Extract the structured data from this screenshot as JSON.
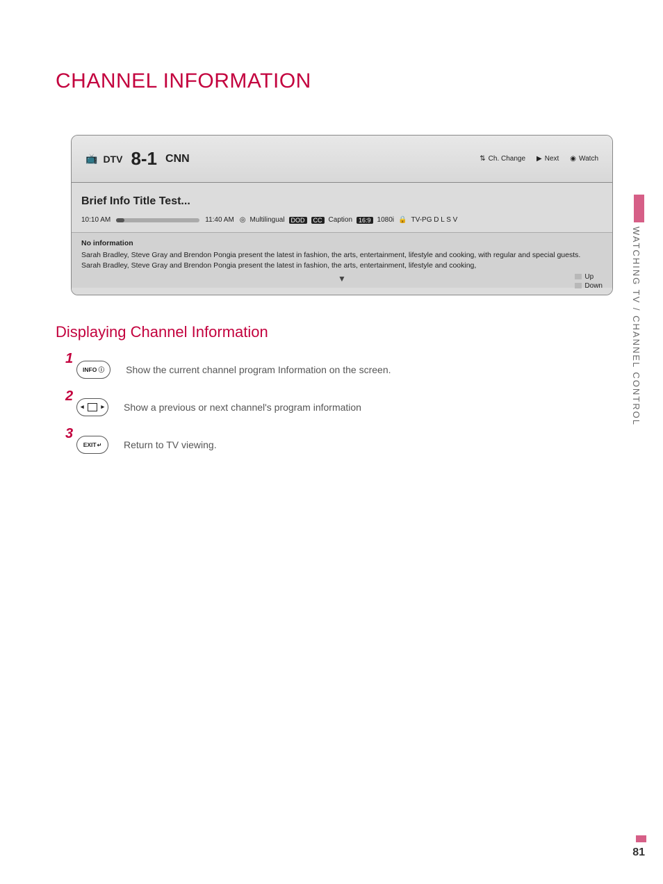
{
  "title": "CHANNEL INFORMATION",
  "side_label": "WATCHING TV / CHANNEL CONTROL",
  "page_number": "81",
  "panel": {
    "dtv_label": "DTV",
    "channel_number": "8-1",
    "channel_name": "CNN",
    "hr_change": "Ch. Change",
    "hr_next": "Next",
    "hr_watch": "Watch",
    "brief_title": "Brief Info Title Test...",
    "time_start": "10:10 AM",
    "time_end": "11:40 AM",
    "multilingual": "Multilingual",
    "dolby": "DOD",
    "cc": "CC",
    "caption": "Caption",
    "aspect": "16:9",
    "res": "1080i",
    "rating": "TV-PG D L S V",
    "noinfo": "No information",
    "desc1": "Sarah Bradley, Steve Gray and Brendon Pongia present the latest in fashion, the arts, entertainment, lifestyle and cooking, with regular and special guests.",
    "desc2": "Sarah Bradley, Steve Gray and Brendon Pongia present the latest in fashion, the arts, entertainment, lifestyle and cooking,",
    "up": "Up",
    "down": "Down"
  },
  "section_title": "Displaying Channel Information",
  "steps": {
    "s1": {
      "num": "1",
      "btn": "INFO ⓘ",
      "text": "Show the current channel program Information on the screen."
    },
    "s2": {
      "num": "2",
      "text": "Show a previous or next channel's program information"
    },
    "s3": {
      "num": "3",
      "btn": "EXIT",
      "text": "Return to TV viewing."
    }
  },
  "colors": {
    "brand": "#c3023e",
    "side_pink": "#d65f87"
  }
}
